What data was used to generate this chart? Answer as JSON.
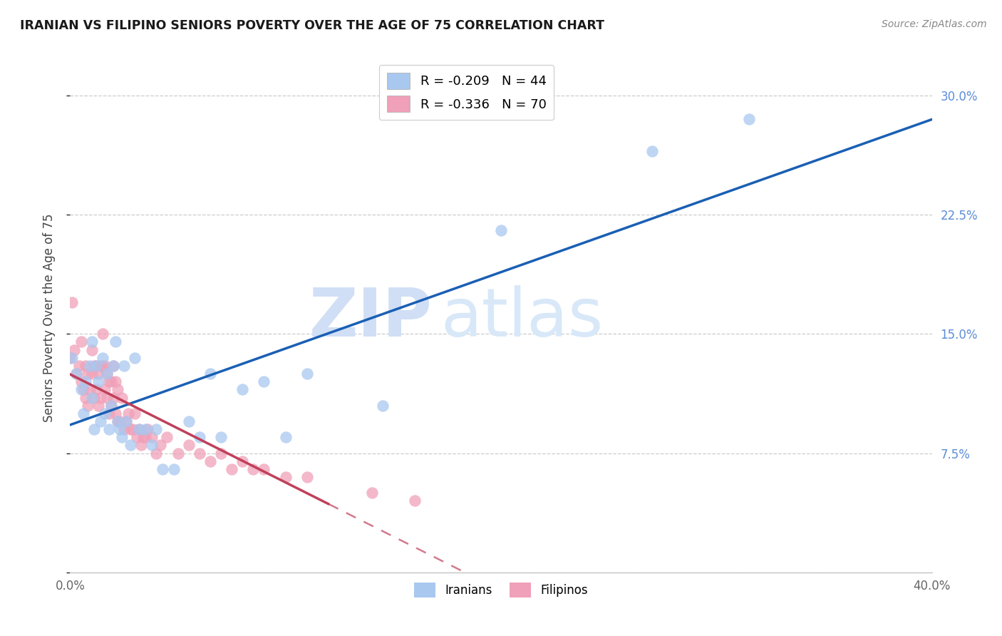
{
  "title": "IRANIAN VS FILIPINO SENIORS POVERTY OVER THE AGE OF 75 CORRELATION CHART",
  "source": "Source: ZipAtlas.com",
  "ylabel": "Seniors Poverty Over the Age of 75",
  "xlim": [
    0.0,
    0.4
  ],
  "ylim": [
    0.0,
    0.32
  ],
  "legend_iranian": "R = -0.209   N = 44",
  "legend_filipino": "R = -0.336   N = 70",
  "iranian_color": "#a8c8f0",
  "filipino_color": "#f0a0b8",
  "trendline_iranian_color": "#1a5fb4",
  "trendline_filipino_color": "#c0405a",
  "watermark_zip": "ZIP",
  "watermark_atlas": "atlas",
  "iranians_x": [
    0.001,
    0.003,
    0.005,
    0.006,
    0.007,
    0.009,
    0.01,
    0.01,
    0.011,
    0.012,
    0.013,
    0.014,
    0.015,
    0.016,
    0.017,
    0.018,
    0.019,
    0.02,
    0.021,
    0.022,
    0.023,
    0.024,
    0.025,
    0.026,
    0.028,
    0.03,
    0.032,
    0.035,
    0.038,
    0.04,
    0.043,
    0.048,
    0.055,
    0.06,
    0.065,
    0.07,
    0.08,
    0.09,
    0.1,
    0.11,
    0.145,
    0.2,
    0.27,
    0.315
  ],
  "iranians_y": [
    0.135,
    0.125,
    0.115,
    0.1,
    0.12,
    0.13,
    0.145,
    0.11,
    0.09,
    0.13,
    0.12,
    0.095,
    0.135,
    0.1,
    0.125,
    0.09,
    0.105,
    0.13,
    0.145,
    0.095,
    0.09,
    0.085,
    0.13,
    0.095,
    0.08,
    0.135,
    0.09,
    0.09,
    0.08,
    0.09,
    0.065,
    0.065,
    0.095,
    0.085,
    0.125,
    0.085,
    0.115,
    0.12,
    0.085,
    0.125,
    0.105,
    0.215,
    0.265,
    0.285
  ],
  "filipinos_x": [
    0.0,
    0.001,
    0.002,
    0.003,
    0.004,
    0.005,
    0.005,
    0.006,
    0.007,
    0.007,
    0.008,
    0.008,
    0.009,
    0.01,
    0.01,
    0.011,
    0.011,
    0.012,
    0.012,
    0.013,
    0.013,
    0.014,
    0.014,
    0.015,
    0.015,
    0.016,
    0.016,
    0.017,
    0.017,
    0.018,
    0.018,
    0.019,
    0.019,
    0.02,
    0.02,
    0.021,
    0.021,
    0.022,
    0.022,
    0.023,
    0.024,
    0.025,
    0.026,
    0.027,
    0.028,
    0.029,
    0.03,
    0.031,
    0.032,
    0.033,
    0.034,
    0.035,
    0.036,
    0.038,
    0.04,
    0.042,
    0.045,
    0.05,
    0.055,
    0.06,
    0.065,
    0.07,
    0.075,
    0.08,
    0.085,
    0.09,
    0.1,
    0.11,
    0.14,
    0.16
  ],
  "filipinos_y": [
    0.135,
    0.17,
    0.14,
    0.125,
    0.13,
    0.12,
    0.145,
    0.115,
    0.11,
    0.13,
    0.105,
    0.125,
    0.115,
    0.125,
    0.14,
    0.11,
    0.13,
    0.115,
    0.13,
    0.105,
    0.125,
    0.11,
    0.13,
    0.13,
    0.15,
    0.115,
    0.13,
    0.11,
    0.125,
    0.1,
    0.12,
    0.105,
    0.12,
    0.11,
    0.13,
    0.1,
    0.12,
    0.095,
    0.115,
    0.095,
    0.11,
    0.09,
    0.095,
    0.1,
    0.09,
    0.09,
    0.1,
    0.085,
    0.09,
    0.08,
    0.085,
    0.085,
    0.09,
    0.085,
    0.075,
    0.08,
    0.085,
    0.075,
    0.08,
    0.075,
    0.07,
    0.075,
    0.065,
    0.07,
    0.065,
    0.065,
    0.06,
    0.06,
    0.05,
    0.045
  ],
  "trendline_fi_solid_end": 0.12,
  "yticks": [
    0.0,
    0.075,
    0.15,
    0.225,
    0.3
  ],
  "ytick_labels_right": [
    "",
    "7.5%",
    "15.0%",
    "22.5%",
    "30.0%"
  ]
}
